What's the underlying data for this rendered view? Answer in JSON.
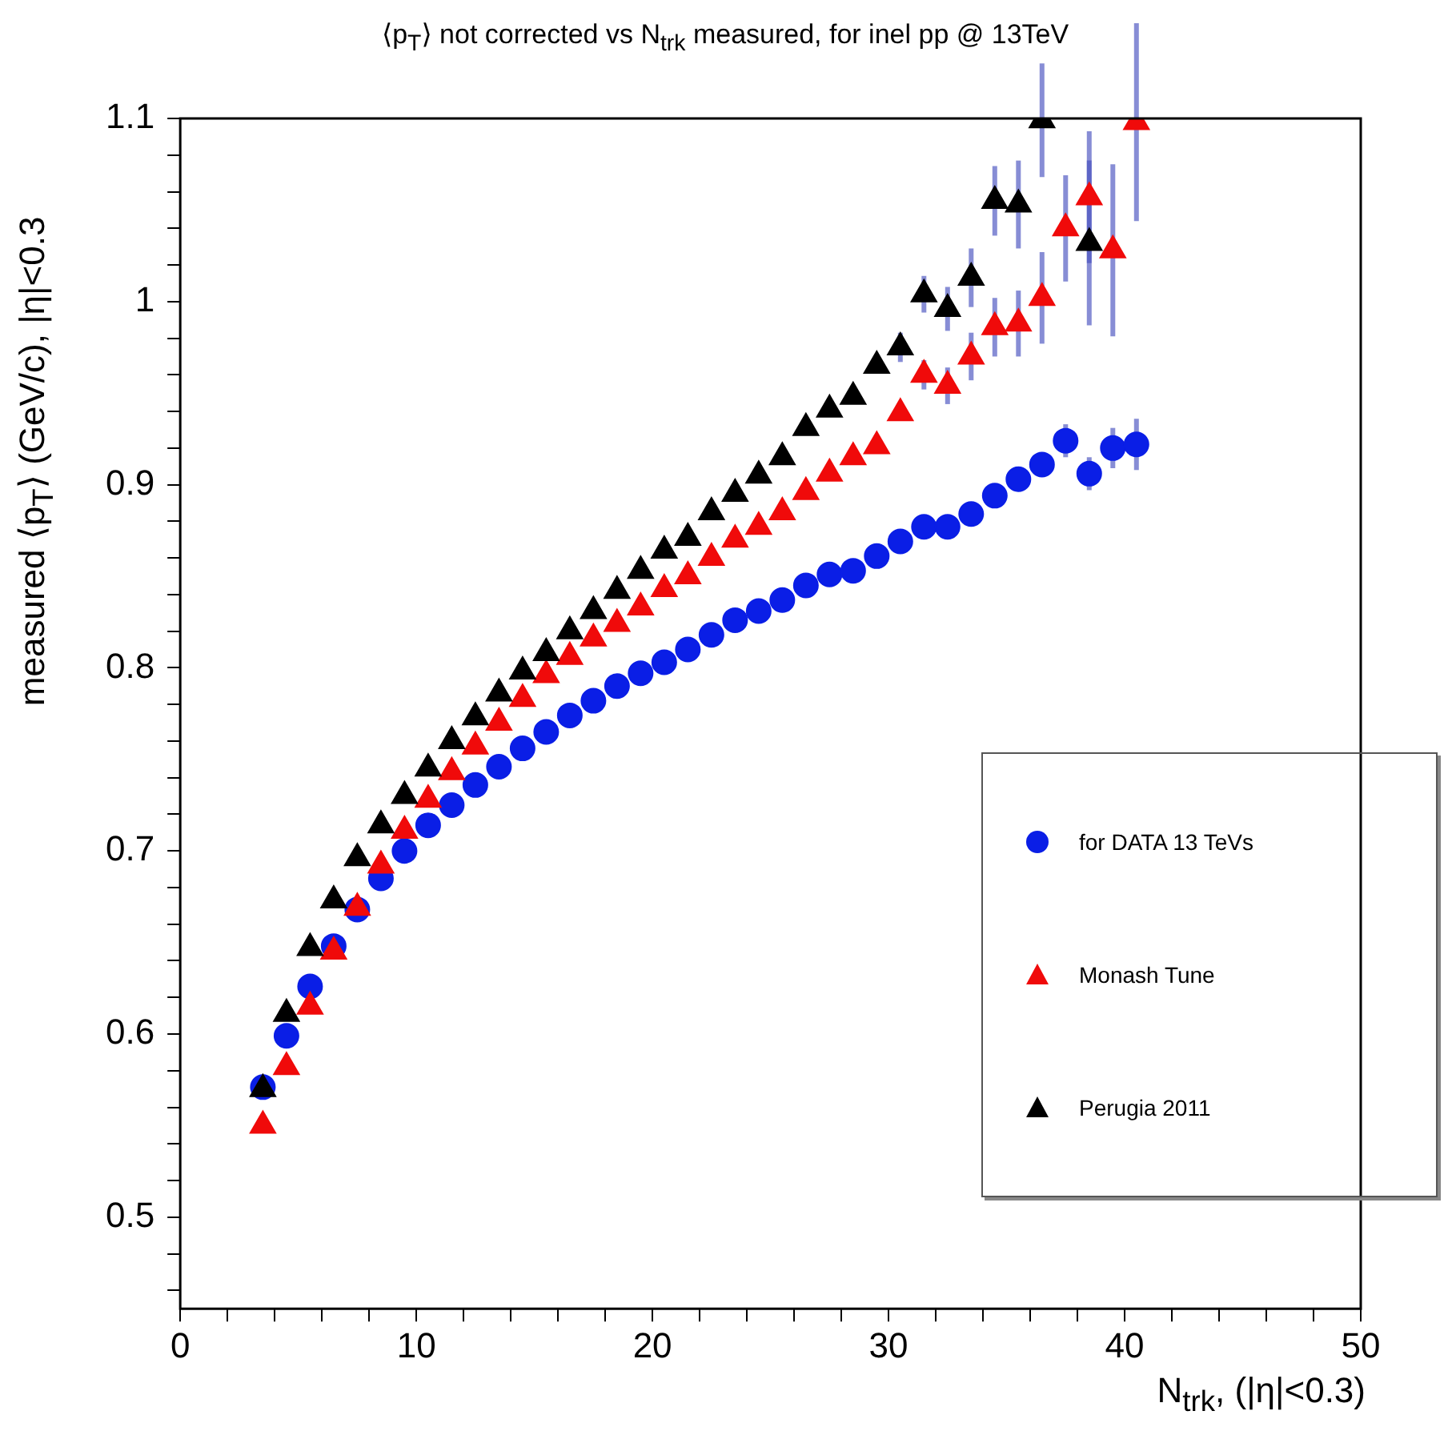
{
  "chart_data": {
    "type": "scatter",
    "title": "⟨p$_{T}$⟩ not corrected vs N$_{trk}$ measured, for inel pp @ 13TeV",
    "xlabel": "N$_{trk}$, (|η|<0.3)",
    "ylabel": "measured ⟨p$_{T}$⟩ (GeV/c), |η|<0.3",
    "x": [
      3.5,
      4.5,
      5.5,
      6.5,
      7.5,
      8.5,
      9.5,
      10.5,
      11.5,
      12.5,
      13.5,
      14.5,
      15.5,
      16.5,
      17.5,
      18.5,
      19.5,
      20.5,
      21.5,
      22.5,
      23.5,
      24.5,
      25.5,
      26.5,
      27.5,
      28.5,
      29.5,
      30.5,
      31.5,
      32.5,
      33.5,
      34.5,
      35.5,
      36.5,
      37.5,
      38.5,
      39.5,
      40.5
    ],
    "series": [
      {
        "name": "for DATA 13 TeVs",
        "color": "#0a1ee6",
        "marker": "circle",
        "values": [
          0.571,
          0.599,
          0.626,
          0.648,
          0.668,
          0.685,
          0.7,
          0.714,
          0.725,
          0.736,
          0.746,
          0.756,
          0.765,
          0.774,
          0.782,
          0.79,
          0.797,
          0.803,
          0.81,
          0.818,
          0.826,
          0.831,
          0.837,
          0.845,
          0.851,
          0.853,
          0.861,
          0.869,
          0.877,
          0.877,
          0.884,
          0.894,
          0.903,
          0.911,
          0.924,
          0.906,
          0.92,
          0.922
        ],
        "errors": [
          null,
          null,
          null,
          null,
          null,
          null,
          null,
          null,
          null,
          null,
          null,
          null,
          null,
          null,
          null,
          null,
          null,
          null,
          null,
          null,
          null,
          null,
          null,
          null,
          null,
          null,
          null,
          null,
          null,
          null,
          null,
          null,
          null,
          null,
          0.009,
          0.009,
          0.011,
          0.014
        ]
      },
      {
        "name": "Monash Tune",
        "color": "#f00a0a",
        "marker": "triangle",
        "values": [
          0.55,
          0.582,
          0.615,
          0.645,
          0.669,
          0.692,
          0.711,
          0.728,
          0.743,
          0.757,
          0.77,
          0.783,
          0.796,
          0.806,
          0.816,
          0.824,
          0.833,
          0.843,
          0.85,
          0.86,
          0.87,
          0.877,
          0.885,
          0.896,
          0.906,
          0.915,
          0.921,
          0.939,
          0.96,
          0.954,
          0.97,
          0.986,
          0.988,
          1.002,
          1.04,
          1.057,
          1.028,
          1.098
        ],
        "errors": [
          null,
          null,
          null,
          null,
          null,
          null,
          null,
          null,
          null,
          null,
          null,
          null,
          null,
          null,
          null,
          null,
          null,
          null,
          null,
          null,
          null,
          null,
          null,
          null,
          null,
          null,
          null,
          null,
          0.008,
          0.01,
          0.013,
          0.016,
          0.018,
          0.025,
          0.029,
          0.036,
          0.047,
          0.054
        ]
      },
      {
        "name": "Perugia 2011",
        "color": "#000000",
        "marker": "triangle",
        "values": [
          0.57,
          0.611,
          0.647,
          0.673,
          0.696,
          0.714,
          0.73,
          0.745,
          0.76,
          0.773,
          0.786,
          0.798,
          0.808,
          0.82,
          0.831,
          0.842,
          0.853,
          0.864,
          0.871,
          0.885,
          0.895,
          0.905,
          0.915,
          0.931,
          0.941,
          0.948,
          0.965,
          0.975,
          1.004,
          0.996,
          1.013,
          1.055,
          1.053,
          1.099,
          null,
          1.032,
          null,
          null
        ],
        "errors": [
          null,
          null,
          null,
          null,
          null,
          null,
          null,
          null,
          null,
          null,
          null,
          null,
          null,
          null,
          null,
          null,
          null,
          null,
          null,
          null,
          null,
          null,
          null,
          null,
          null,
          null,
          null,
          0.008,
          0.01,
          0.012,
          0.016,
          0.019,
          0.024,
          0.031,
          null,
          0.045,
          null,
          null
        ]
      }
    ],
    "xlim": [
      0,
      50
    ],
    "xticks": [
      0,
      {
        "value": 2,
        "label": null
      },
      {
        "value": 4,
        "label": null
      },
      {
        "value": 6,
        "label": null
      },
      {
        "value": 8,
        "label": null
      },
      10,
      {
        "value": 12,
        "label": null
      },
      {
        "value": 14,
        "label": null
      },
      {
        "value": 16,
        "label": null
      },
      {
        "value": 18,
        "label": null
      },
      20,
      {
        "value": 22,
        "label": null
      },
      {
        "value": 24,
        "label": null
      },
      {
        "value": 26,
        "label": null
      },
      {
        "value": 28,
        "label": null
      },
      30,
      {
        "value": 32,
        "label": null
      },
      {
        "value": 34,
        "label": null
      },
      {
        "value": 36,
        "label": null
      },
      {
        "value": 38,
        "label": null
      },
      40,
      {
        "value": 42,
        "label": null
      },
      {
        "value": 44,
        "label": null
      },
      {
        "value": 46,
        "label": null
      },
      {
        "value": 48,
        "label": null
      },
      50
    ],
    "ylim": [
      0.45,
      1.1
    ],
    "yticks": [
      {
        "value": 0.46,
        "label": null
      },
      {
        "value": 0.48,
        "label": null
      },
      0.5,
      {
        "value": 0.52,
        "label": null
      },
      {
        "value": 0.54,
        "label": null
      },
      {
        "value": 0.56,
        "label": null
      },
      {
        "value": 0.58,
        "label": null
      },
      0.6,
      {
        "value": 0.62,
        "label": null
      },
      {
        "value": 0.64,
        "label": null
      },
      {
        "value": 0.66,
        "label": null
      },
      {
        "value": 0.68,
        "label": null
      },
      0.7,
      {
        "value": 0.72,
        "label": null
      },
      {
        "value": 0.74,
        "label": null
      },
      {
        "value": 0.76,
        "label": null
      },
      {
        "value": 0.78,
        "label": null
      },
      0.8,
      {
        "value": 0.82,
        "label": null
      },
      {
        "value": 0.84,
        "label": null
      },
      {
        "value": 0.86,
        "label": null
      },
      {
        "value": 0.88,
        "label": null
      },
      0.9,
      {
        "value": 0.92,
        "label": null
      },
      {
        "value": 0.94,
        "label": null
      },
      {
        "value": 0.96,
        "label": null
      },
      {
        "value": 0.98,
        "label": null
      },
      1,
      {
        "value": 1.02,
        "label": null
      },
      {
        "value": 1.04,
        "label": null
      },
      {
        "value": 1.06,
        "label": null
      },
      {
        "value": 1.08,
        "label": null
      },
      1.1
    ],
    "legend": "bottom right"
  }
}
